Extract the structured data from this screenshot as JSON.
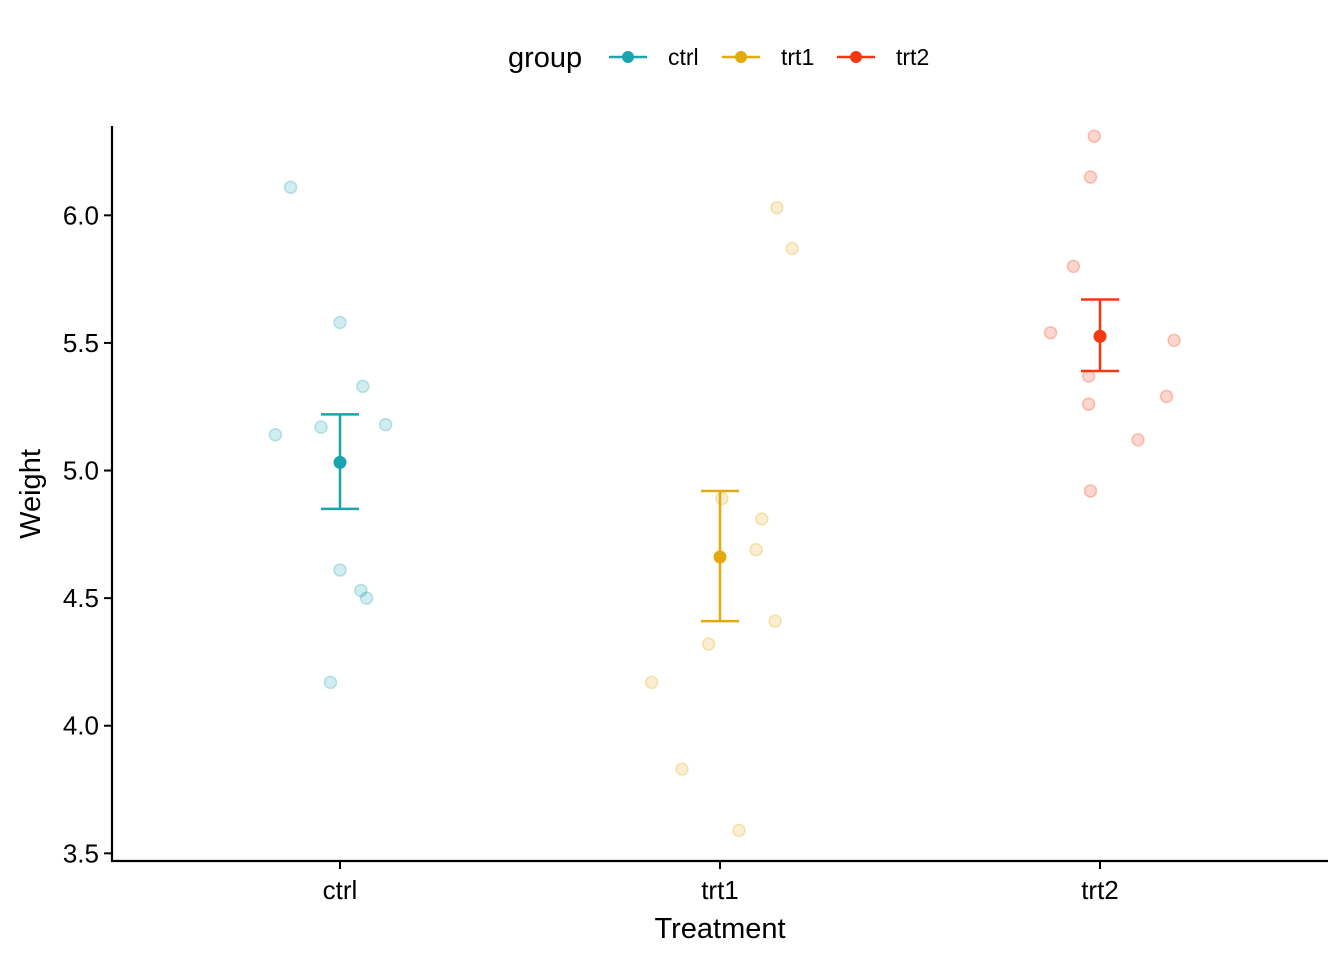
{
  "chart_data": {
    "type": "scatter",
    "xlabel": "Treatment",
    "ylabel": "Weight",
    "categories": [
      "ctrl",
      "trt1",
      "trt2"
    ],
    "ylim": [
      3.47,
      6.35
    ],
    "yticks": [
      3.5,
      4.0,
      4.5,
      5.0,
      5.5,
      6.0
    ],
    "ytick_labels": [
      "3.5",
      "4.0",
      "4.5",
      "5.0",
      "5.5",
      "6.0"
    ],
    "grid": false,
    "legend": {
      "title": "group",
      "placement": "top",
      "entries": [
        "ctrl",
        "trt1",
        "trt2"
      ]
    },
    "colors": {
      "ctrl": "#1BA3B0",
      "trt1": "#E2AA0F",
      "trt2": "#F4380F"
    },
    "series": [
      {
        "name": "ctrl",
        "points": [
          {
            "x": -0.13,
            "y": 6.11
          },
          {
            "x": 0.0,
            "y": 5.58
          },
          {
            "x": 0.06,
            "y": 5.33
          },
          {
            "x": 0.12,
            "y": 5.18
          },
          {
            "x": -0.05,
            "y": 5.17
          },
          {
            "x": -0.17,
            "y": 5.14
          },
          {
            "x": 0.0,
            "y": 4.61
          },
          {
            "x": 0.055,
            "y": 4.53
          },
          {
            "x": 0.07,
            "y": 4.5
          },
          {
            "x": -0.025,
            "y": 4.17
          }
        ],
        "mean": 5.032,
        "error_low": 4.85,
        "error_high": 5.22
      },
      {
        "name": "trt1",
        "points": [
          {
            "x": 0.15,
            "y": 6.03
          },
          {
            "x": 0.19,
            "y": 5.87
          },
          {
            "x": 0.005,
            "y": 4.89
          },
          {
            "x": 0.11,
            "y": 4.81
          },
          {
            "x": 0.095,
            "y": 4.69
          },
          {
            "x": 0.145,
            "y": 4.41
          },
          {
            "x": -0.03,
            "y": 4.32
          },
          {
            "x": -0.18,
            "y": 4.17
          },
          {
            "x": -0.1,
            "y": 3.83
          },
          {
            "x": 0.05,
            "y": 3.59
          }
        ],
        "mean": 4.661,
        "error_low": 4.41,
        "error_high": 4.92
      },
      {
        "name": "trt2",
        "points": [
          {
            "x": -0.015,
            "y": 6.31
          },
          {
            "x": -0.025,
            "y": 6.15
          },
          {
            "x": -0.07,
            "y": 5.8
          },
          {
            "x": -0.13,
            "y": 5.54
          },
          {
            "x": 0.195,
            "y": 5.51
          },
          {
            "x": -0.03,
            "y": 5.37
          },
          {
            "x": 0.175,
            "y": 5.29
          },
          {
            "x": -0.03,
            "y": 5.26
          },
          {
            "x": 0.1,
            "y": 5.12
          },
          {
            "x": -0.025,
            "y": 4.92
          }
        ],
        "mean": 5.526,
        "error_low": 5.39,
        "error_high": 5.67
      }
    ]
  }
}
